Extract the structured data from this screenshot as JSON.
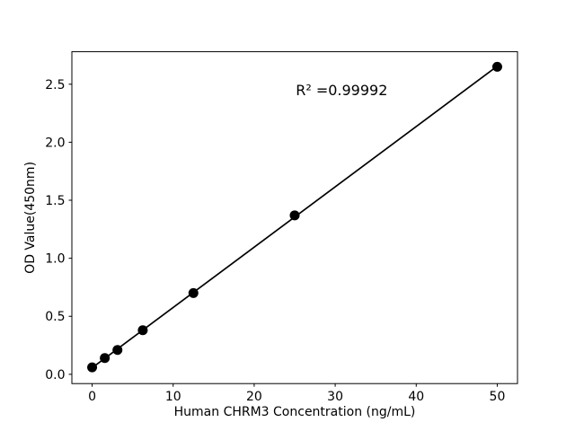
{
  "figure": {
    "background": "#ffffff",
    "foreground": "#000000"
  },
  "chart_data": {
    "type": "scatter",
    "title": "",
    "xlabel": "Human CHRM3 Concentration (ng/mL)",
    "ylabel": "OD Value(450nm)",
    "x": [
      0,
      1.5625,
      3.125,
      6.25,
      12.5,
      25,
      50
    ],
    "y": [
      0.06,
      0.14,
      0.21,
      0.38,
      0.7,
      1.37,
      2.65
    ],
    "fit_line": true,
    "annotation": {
      "text": "R² =0.99992",
      "x": 30.8,
      "y": 2.44
    },
    "xlim": [
      -2.5,
      52.5
    ],
    "ylim": [
      -0.08,
      2.78
    ],
    "xticks": [
      0,
      10,
      20,
      30,
      40,
      50
    ],
    "xtick_labels": [
      "0",
      "10",
      "20",
      "30",
      "40",
      "50"
    ],
    "yticks": [
      0.0,
      0.5,
      1.0,
      1.5,
      2.0,
      2.5
    ],
    "ytick_labels": [
      "0.0",
      "0.5",
      "1.0",
      "1.5",
      "2.0",
      "2.5"
    ],
    "grid": false,
    "legend": null,
    "marker_color": "#000000",
    "line_color": "#000000",
    "axis_color": "#000000"
  }
}
